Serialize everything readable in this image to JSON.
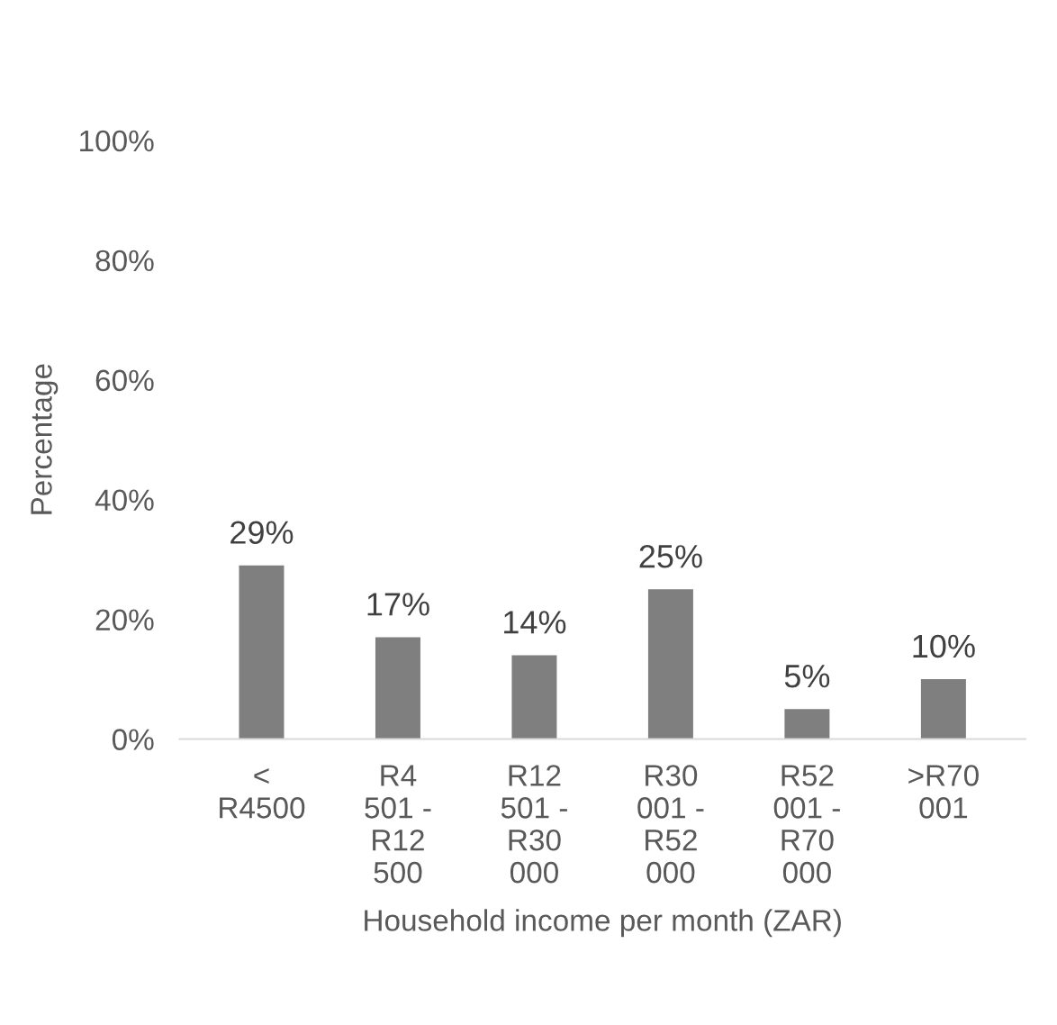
{
  "chart_data": {
    "type": "bar",
    "categories": [
      "<\nR4500",
      "R4\n501 -\nR12\n500",
      "R12\n501 -\nR30\n000",
      "R30\n001 -\nR52\n000",
      "R52\n001 -\nR70\n000",
      ">R70\n001"
    ],
    "values": [
      29,
      17,
      14,
      25,
      5,
      10
    ],
    "value_labels": [
      "29%",
      "17%",
      "14%",
      "25%",
      "5%",
      "10%"
    ],
    "color": "#7f7f7f",
    "xlabel": "Household income per month (ZAR)",
    "ylabel": "Percentage",
    "ylim": [
      0,
      100
    ],
    "yticks": [
      {
        "value": 0,
        "label": "0%"
      },
      {
        "value": 20,
        "label": "20%"
      },
      {
        "value": 40,
        "label": "40%"
      },
      {
        "value": 60,
        "label": "60%"
      },
      {
        "value": 80,
        "label": "80%"
      },
      {
        "value": 100,
        "label": "100%"
      }
    ],
    "grid": false,
    "legend": false
  }
}
